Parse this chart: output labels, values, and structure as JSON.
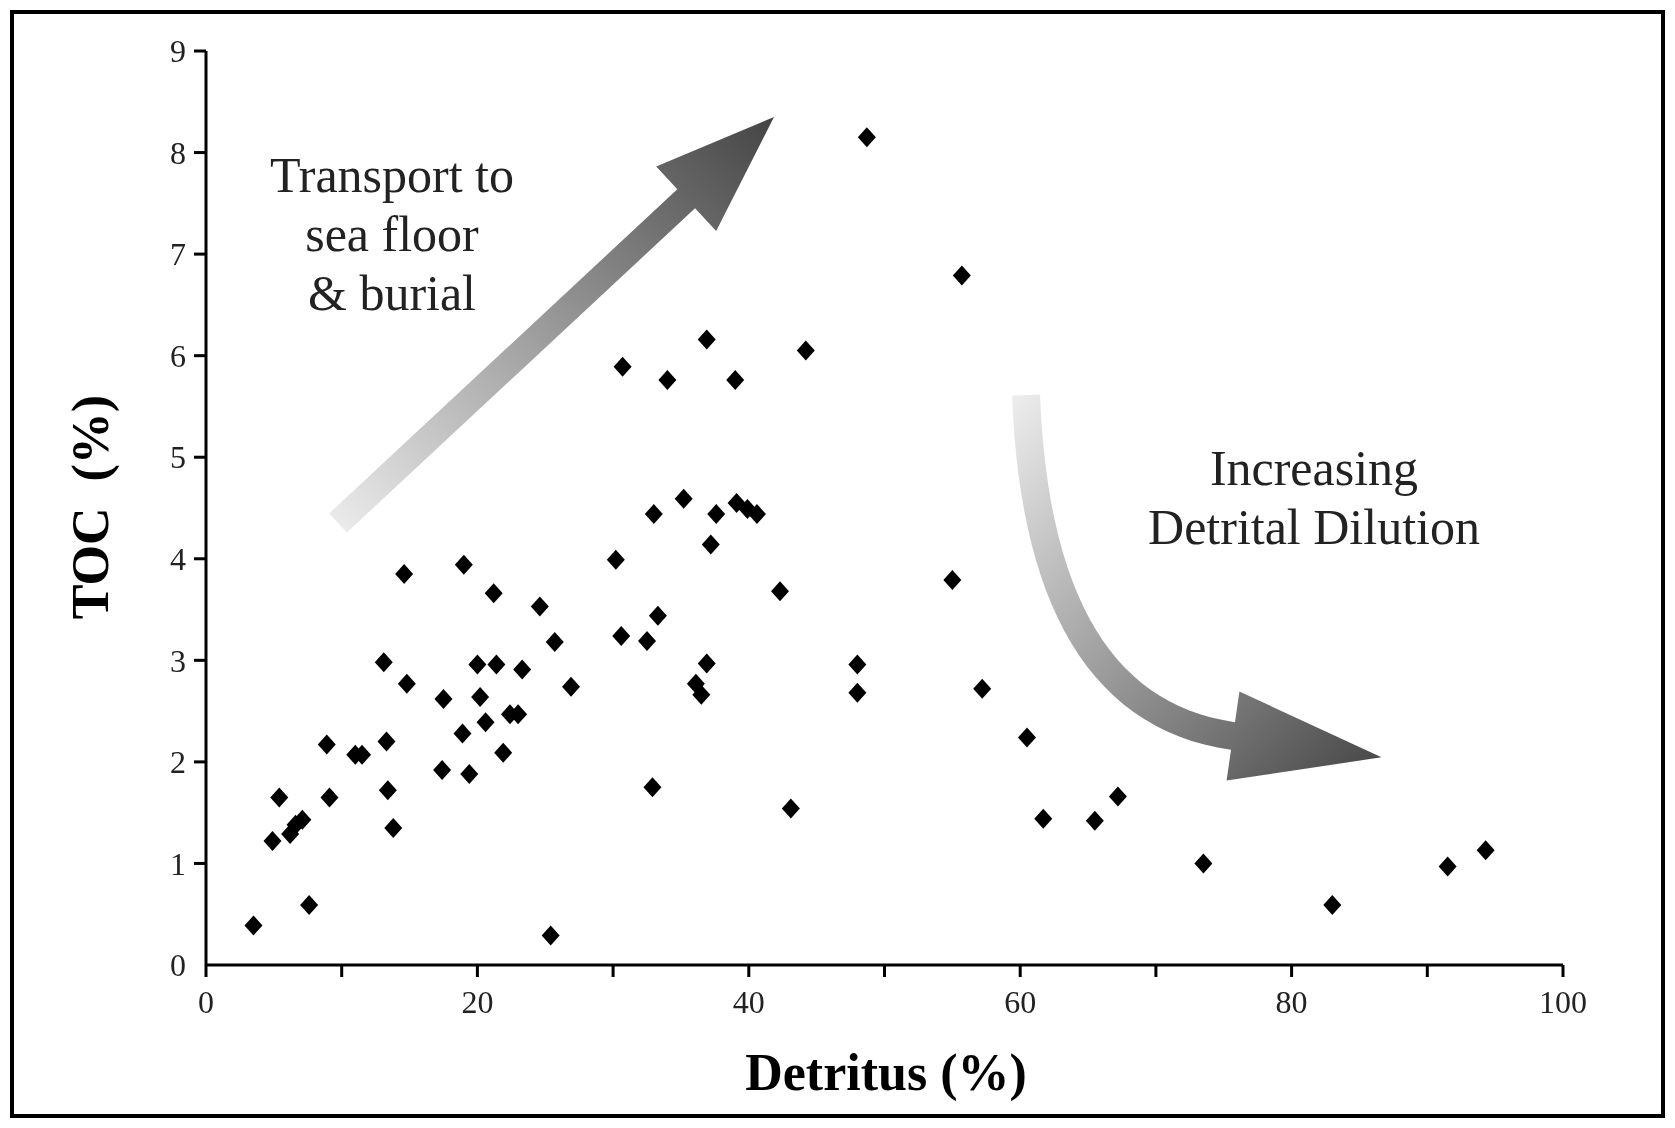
{
  "chart_data": {
    "type": "scatter",
    "xlabel": "Detritus (%)",
    "ylabel": "TOC  (%)",
    "annotations": [
      "Transport to\nsea floor\n& burial",
      "Increasing\nDetrital Dilution"
    ],
    "xlim": [
      0,
      100
    ],
    "ylim": [
      0,
      9
    ],
    "xticks": [
      0,
      {
        "value": 10,
        "label": null
      },
      20,
      {
        "value": 30,
        "label": null
      },
      40,
      {
        "value": 50,
        "label": null
      },
      60,
      {
        "value": 70,
        "label": null
      },
      80,
      {
        "value": 90,
        "label": null
      },
      100
    ],
    "yticks": [
      0,
      1,
      2,
      3,
      4,
      5,
      6,
      7,
      8,
      9
    ],
    "marker": "diamond",
    "grid": false,
    "series": [
      {
        "color": "#000000",
        "x": [
          3.5,
          4.9,
          5.4,
          6.2,
          6.6,
          7.1,
          7.6,
          8.9,
          9.1,
          11.0,
          11.5,
          13.1,
          13.3,
          13.4,
          13.8,
          14.6,
          14.8,
          17.5,
          17.4,
          19.0,
          18.9,
          19.4,
          20.0,
          20.2,
          20.6,
          21.2,
          21.4,
          21.9,
          22.4,
          23.0,
          23.3,
          24.6,
          25.7,
          25.4,
          26.9,
          30.2,
          30.6,
          30.7,
          32.5,
          33.0,
          32.9,
          33.3,
          34.0,
          35.2,
          36.1,
          36.5,
          36.9,
          36.9,
          37.2,
          37.6,
          39.0,
          39.1,
          39.9,
          40.6,
          42.3,
          43.1,
          44.2,
          48.0,
          48.0,
          48.7,
          55.0,
          55.7,
          57.2,
          60.5,
          61.7,
          65.5,
          67.2,
          73.5,
          83.0,
          91.5,
          94.3
        ],
        "values": [
          0.39,
          1.22,
          1.65,
          1.29,
          1.38,
          1.43,
          0.59,
          2.17,
          1.65,
          2.07,
          2.07,
          2.98,
          2.2,
          1.72,
          1.35,
          3.85,
          2.77,
          2.62,
          1.92,
          3.94,
          2.28,
          1.88,
          2.96,
          2.64,
          2.39,
          3.66,
          2.96,
          2.09,
          2.47,
          2.47,
          2.91,
          3.53,
          3.18,
          0.29,
          2.74,
          3.99,
          3.24,
          5.89,
          3.19,
          4.44,
          1.75,
          3.44,
          5.76,
          4.59,
          2.77,
          2.66,
          6.16,
          2.97,
          4.14,
          4.44,
          5.76,
          4.55,
          4.49,
          4.44,
          3.68,
          1.54,
          6.05,
          2.96,
          2.68,
          8.15,
          3.79,
          6.79,
          2.72,
          2.24,
          1.44,
          1.42,
          1.66,
          1.0,
          0.59,
          0.97,
          1.13
        ]
      }
    ]
  }
}
